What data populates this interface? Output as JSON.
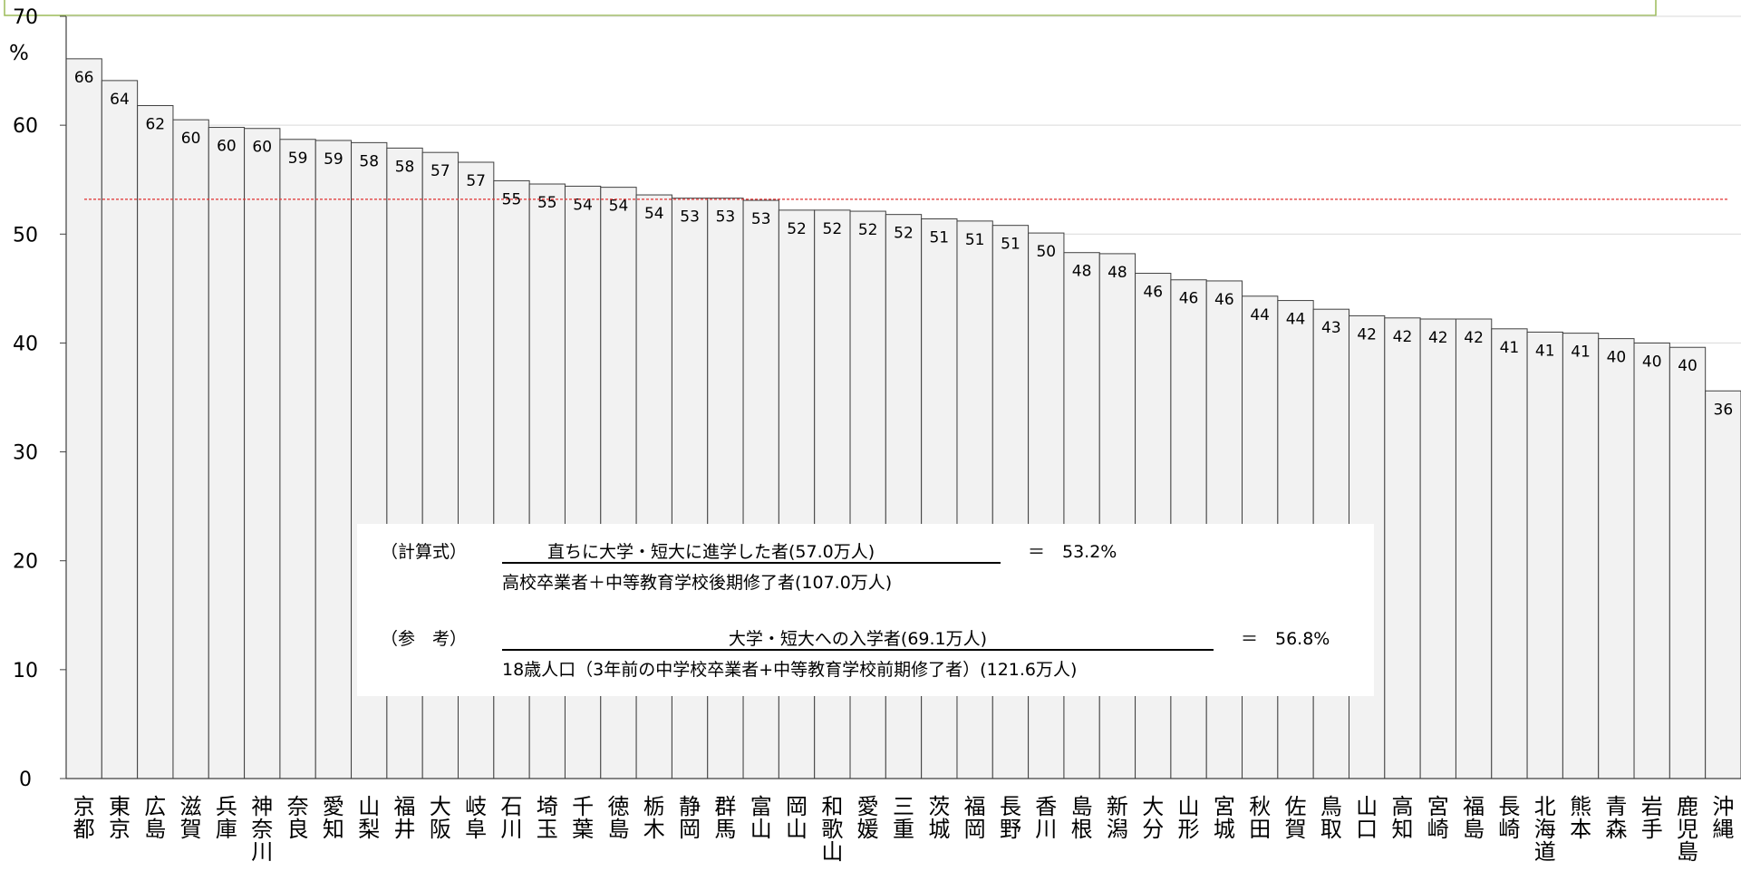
{
  "colors": {
    "bar_fill": "#f2f2f2",
    "bar_stroke": "#404040",
    "grid": "#d9d9d9",
    "average_line": "#e03030",
    "top_border": "#9bbb59"
  },
  "chart_data": {
    "type": "bar",
    "unit_label": "%",
    "ylim": [
      0,
      70
    ],
    "yticks": [
      0,
      10,
      20,
      30,
      40,
      50,
      60,
      70
    ],
    "grid": true,
    "average_line": 53.2,
    "categories": [
      "京都",
      "東京",
      "広島",
      "滋賀",
      "兵庫",
      "神奈川",
      "奈良",
      "愛知",
      "山梨",
      "福井",
      "大阪",
      "岐阜",
      "石川",
      "埼玉",
      "千葉",
      "徳島",
      "栃木",
      "静岡",
      "群馬",
      "富山",
      "岡山",
      "和歌山",
      "愛媛",
      "三重",
      "茨城",
      "福岡",
      "長野",
      "香川",
      "島根",
      "新潟",
      "大分",
      "山形",
      "宮城",
      "秋田",
      "佐賀",
      "鳥取",
      "山口",
      "高知",
      "宮崎",
      "福島",
      "長崎",
      "北海道",
      "熊本",
      "青森",
      "岩手",
      "鹿児島",
      "沖縄"
    ],
    "values": [
      66.1,
      64.1,
      61.8,
      60.5,
      59.8,
      59.7,
      58.7,
      58.6,
      58.4,
      57.9,
      57.5,
      56.6,
      54.9,
      54.6,
      54.4,
      54.3,
      53.6,
      53.3,
      53.3,
      53.1,
      52.2,
      52.2,
      52.1,
      51.8,
      51.4,
      51.2,
      50.8,
      50.1,
      48.3,
      48.2,
      46.4,
      45.8,
      45.7,
      44.3,
      43.9,
      43.1,
      42.5,
      42.3,
      42.2,
      42.2,
      41.3,
      41.0,
      40.9,
      40.4,
      40.0,
      39.6,
      35.6
    ],
    "value_labels": [
      "66",
      "64",
      "62",
      "60",
      "60",
      "60",
      "59",
      "59",
      "58",
      "58",
      "57",
      "57",
      "55",
      "55",
      "54",
      "54",
      "54",
      "53",
      "53",
      "53",
      "52",
      "52",
      "52",
      "52",
      "51",
      "51",
      "51",
      "50",
      "48",
      "48",
      "46",
      "46",
      "46",
      "44",
      "44",
      "43",
      "42",
      "42",
      "42",
      "42",
      "41",
      "41",
      "41",
      "40",
      "40",
      "40",
      "36"
    ]
  },
  "formula": {
    "calc_label": "（計算式）",
    "calc_numerator": "直ちに大学・短大に進学した者(57.0万人)",
    "calc_denominator": "高校卒業者＋中等教育学校後期修了者(107.0万人)",
    "calc_result": "＝　53.2%",
    "ref_label": "（参　考）",
    "ref_numerator": "大学・短大への入学者(69.1万人)",
    "ref_denominator": "18歳人口（3年前の中学校卒業者+中等教育学校前期修了者）(121.6万人)",
    "ref_result": "＝　56.8%"
  }
}
